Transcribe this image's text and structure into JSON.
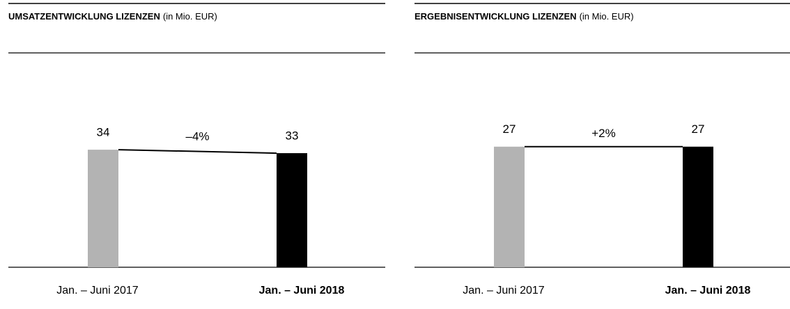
{
  "chart_data": [
    {
      "type": "bar",
      "title": "UMSATZENTWICKLUNG LIZENZEN",
      "unit": "(in Mio. EUR)",
      "categories": [
        "Jan. – Juni 2017",
        "Jan. – Juni 2018"
      ],
      "values": [
        34,
        33
      ],
      "colors": [
        "#b3b3b3",
        "#000000"
      ],
      "change_label": "–4%",
      "ylim": [
        0,
        62
      ]
    },
    {
      "type": "bar",
      "title": "ERGEBNISENTWICKLUNG LIZENZEN",
      "unit": "(in Mio. EUR)",
      "categories": [
        "Jan. – Juni 2017",
        "Jan. – Juni 2018"
      ],
      "values": [
        27,
        27
      ],
      "colors": [
        "#b3b3b3",
        "#000000"
      ],
      "change_label": "+2%",
      "ylim": [
        0,
        48
      ]
    }
  ]
}
